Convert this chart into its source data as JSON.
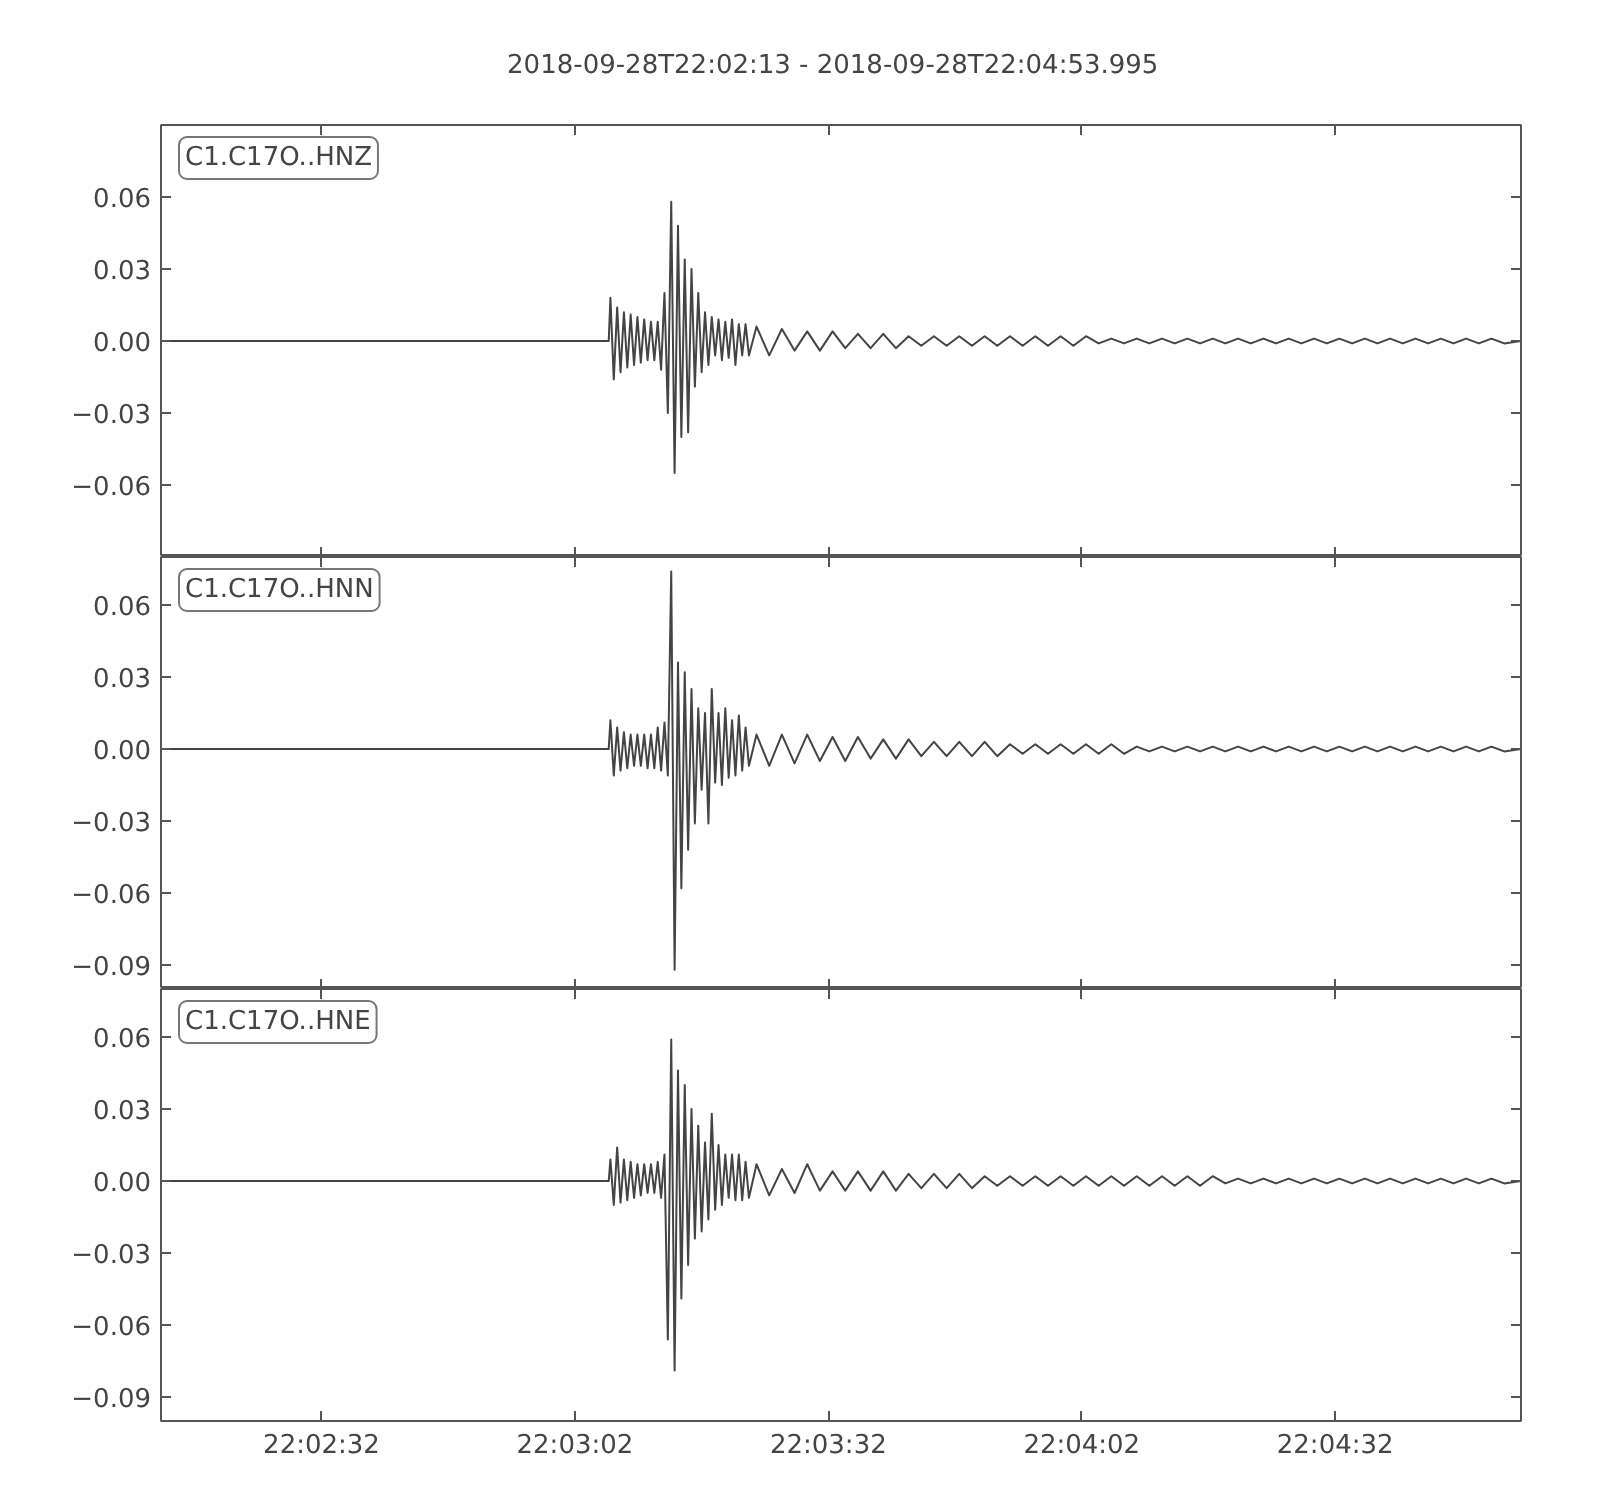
{
  "chart_data": [
    {
      "type": "line",
      "title": "2018-09-28T22:02:13  -  2018-09-28T22:04:53.995",
      "tick_labels": "y",
      "xlim": [
        "2018-09-28T22:02:13",
        "2018-09-28T22:04:53.995"
      ],
      "xticks": [
        {
          "value": "2018-09-28T22:02:32",
          "label": null
        },
        {
          "value": "2018-09-28T22:03:02",
          "label": null
        },
        {
          "value": "2018-09-28T22:03:32",
          "label": null
        },
        {
          "value": "2018-09-28T22:04:02",
          "label": null
        },
        {
          "value": "2018-09-28T22:04:32",
          "label": null
        }
      ],
      "ylim": [
        -0.09,
        0.09
      ],
      "yticks": [
        {
          "value": 0.06,
          "label": "0.06"
        },
        {
          "value": 0.03,
          "label": "0.03"
        },
        {
          "value": 0,
          "label": "0.00"
        },
        {
          "value": -0.03,
          "label": "−0.03"
        },
        {
          "value": -0.06,
          "label": "−0.06"
        }
      ],
      "x": [
        "2018-09-28T22:02:13",
        "2018-09-28T22:02:30",
        "2018-09-28T22:02:50",
        "2018-09-28T22:03:06",
        "2018-09-28T22:03:06.2",
        "2018-09-28T22:03:06.6",
        "2018-09-28T22:03:07.0",
        "2018-09-28T22:03:07.4",
        "2018-09-28T22:03:07.8",
        "2018-09-28T22:03:08.2",
        "2018-09-28T22:03:08.6",
        "2018-09-28T22:03:09.0",
        "2018-09-28T22:03:09.4",
        "2018-09-28T22:03:09.8",
        "2018-09-28T22:03:10.2",
        "2018-09-28T22:03:10.6",
        "2018-09-28T22:03:11.0",
        "2018-09-28T22:03:11.4",
        "2018-09-28T22:03:11.8",
        "2018-09-28T22:03:12.2",
        "2018-09-28T22:03:12.6",
        "2018-09-28T22:03:13.0",
        "2018-09-28T22:03:13.4",
        "2018-09-28T22:03:13.8",
        "2018-09-28T22:03:14.2",
        "2018-09-28T22:03:14.6",
        "2018-09-28T22:03:15.0",
        "2018-09-28T22:03:15.4",
        "2018-09-28T22:03:15.8",
        "2018-09-28T22:03:16.2",
        "2018-09-28T22:03:16.6",
        "2018-09-28T22:03:17.0",
        "2018-09-28T22:03:17.4",
        "2018-09-28T22:03:17.8",
        "2018-09-28T22:03:18.2",
        "2018-09-28T22:03:18.6",
        "2018-09-28T22:03:19.0",
        "2018-09-28T22:03:19.4",
        "2018-09-28T22:03:19.8",
        "2018-09-28T22:03:20.2",
        "2018-09-28T22:03:20.6",
        "2018-09-28T22:03:21.0",
        "2018-09-28T22:03:21.4",
        "2018-09-28T22:03:21.8",
        "2018-09-28T22:03:22.2",
        "2018-09-28T22:03:22.6",
        "2018-09-28T22:03:23.5",
        "2018-09-28T22:03:25.0",
        "2018-09-28T22:03:26.5",
        "2018-09-28T22:03:28.0",
        "2018-09-28T22:03:29.5",
        "2018-09-28T22:03:31.0",
        "2018-09-28T22:03:32.5",
        "2018-09-28T22:03:34.0",
        "2018-09-28T22:03:35.5",
        "2018-09-28T22:03:37.0",
        "2018-09-28T22:03:38.5",
        "2018-09-28T22:03:40.0",
        "2018-09-28T22:03:41.5",
        "2018-09-28T22:03:43.0",
        "2018-09-28T22:03:44.5",
        "2018-09-28T22:03:46.0",
        "2018-09-28T22:03:47.5",
        "2018-09-28T22:03:49.0",
        "2018-09-28T22:03:50.5",
        "2018-09-28T22:03:52.0",
        "2018-09-28T22:03:53.5",
        "2018-09-28T22:03:55.0",
        "2018-09-28T22:03:56.5",
        "2018-09-28T22:03:58.0",
        "2018-09-28T22:03:59.5",
        "2018-09-28T22:04:01.0",
        "2018-09-28T22:04:02.5",
        "2018-09-28T22:04:04.0",
        "2018-09-28T22:04:05.5",
        "2018-09-28T22:04:07.0",
        "2018-09-28T22:04:08.5",
        "2018-09-28T22:04:10.0",
        "2018-09-28T22:04:11.5",
        "2018-09-28T22:04:13.0",
        "2018-09-28T22:04:14.5",
        "2018-09-28T22:04:16.0",
        "2018-09-28T22:04:17.5",
        "2018-09-28T22:04:19.0",
        "2018-09-28T22:04:20.5",
        "2018-09-28T22:04:22.0",
        "2018-09-28T22:04:23.5",
        "2018-09-28T22:04:25.0",
        "2018-09-28T22:04:26.5",
        "2018-09-28T22:04:28.0",
        "2018-09-28T22:04:29.5",
        "2018-09-28T22:04:31.0",
        "2018-09-28T22:04:32.5",
        "2018-09-28T22:04:34.0",
        "2018-09-28T22:04:35.5",
        "2018-09-28T22:04:37.0",
        "2018-09-28T22:04:38.5",
        "2018-09-28T22:04:40.0",
        "2018-09-28T22:04:41.5",
        "2018-09-28T22:04:43.0",
        "2018-09-28T22:04:44.5",
        "2018-09-28T22:04:46.0",
        "2018-09-28T22:04:47.5",
        "2018-09-28T22:04:49.0",
        "2018-09-28T22:04:50.5",
        "2018-09-28T22:04:52.0",
        "2018-09-28T22:04:53.995"
      ],
      "series": [
        {
          "name": "C1.C17O..HNZ",
          "color": "#444444",
          "values": [
            0,
            0,
            0,
            0,
            0.018,
            -0.016,
            0.014,
            -0.013,
            0.012,
            -0.011,
            0.011,
            -0.01,
            0.01,
            -0.009,
            0.009,
            -0.008,
            0.008,
            -0.008,
            0.008,
            -0.012,
            0.02,
            -0.03,
            0.058,
            -0.055,
            0.048,
            -0.04,
            0.034,
            -0.038,
            0.03,
            -0.019,
            0.02,
            -0.013,
            0.012,
            -0.01,
            0.01,
            -0.006,
            0.009,
            -0.008,
            0.008,
            -0.007,
            0.009,
            -0.01,
            0.007,
            -0.006,
            0.007,
            -0.006,
            0.006,
            -0.006,
            0.005,
            -0.004,
            0.004,
            -0.004,
            0.004,
            -0.003,
            0.003,
            -0.003,
            0.003,
            -0.003,
            0.002,
            -0.002,
            0.002,
            -0.002,
            0.002,
            -0.002,
            0.002,
            -0.002,
            0.002,
            -0.002,
            0.002,
            -0.002,
            0.002,
            -0.002,
            0.002,
            -0.001,
            0.001,
            -0.001,
            0.001,
            -0.001,
            0.001,
            -0.001,
            0.001,
            -0.001,
            0.001,
            -0.001,
            0.001,
            -0.001,
            0.001,
            -0.001,
            0.001,
            -0.001,
            0.001,
            -0.001,
            0.001,
            -0.001,
            0.001,
            -0.001,
            0.001,
            -0.001,
            0.001,
            -0.001,
            0.001,
            -0.001,
            0.001,
            -0.001,
            0.001,
            -0.001,
            0
          ]
        }
      ]
    },
    {
      "type": "line",
      "tick_labels": "y",
      "xlim": [
        "2018-09-28T22:02:13",
        "2018-09-28T22:04:53.995"
      ],
      "xticks": [
        {
          "value": "2018-09-28T22:02:32",
          "label": null
        },
        {
          "value": "2018-09-28T22:03:02",
          "label": null
        },
        {
          "value": "2018-09-28T22:03:32",
          "label": null
        },
        {
          "value": "2018-09-28T22:04:02",
          "label": null
        },
        {
          "value": "2018-09-28T22:04:32",
          "label": null
        }
      ],
      "ylim": [
        -0.1,
        0.08
      ],
      "yticks": [
        {
          "value": 0.06,
          "label": "0.06"
        },
        {
          "value": 0.03,
          "label": "0.03"
        },
        {
          "value": 0,
          "label": "0.00"
        },
        {
          "value": -0.03,
          "label": "−0.03"
        },
        {
          "value": -0.06,
          "label": "−0.06"
        },
        {
          "value": -0.09,
          "label": "−0.09"
        }
      ],
      "x": [
        "2018-09-28T22:02:13",
        "2018-09-28T22:02:30",
        "2018-09-28T22:02:50",
        "2018-09-28T22:03:06",
        "2018-09-28T22:03:06.2",
        "2018-09-28T22:03:06.6",
        "2018-09-28T22:03:07.0",
        "2018-09-28T22:03:07.4",
        "2018-09-28T22:03:07.8",
        "2018-09-28T22:03:08.2",
        "2018-09-28T22:03:08.6",
        "2018-09-28T22:03:09.0",
        "2018-09-28T22:03:09.4",
        "2018-09-28T22:03:09.8",
        "2018-09-28T22:03:10.2",
        "2018-09-28T22:03:10.6",
        "2018-09-28T22:03:11.0",
        "2018-09-28T22:03:11.4",
        "2018-09-28T22:03:11.8",
        "2018-09-28T22:03:12.2",
        "2018-09-28T22:03:12.6",
        "2018-09-28T22:03:13.0",
        "2018-09-28T22:03:13.4",
        "2018-09-28T22:03:13.8",
        "2018-09-28T22:03:14.2",
        "2018-09-28T22:03:14.6",
        "2018-09-28T22:03:15.0",
        "2018-09-28T22:03:15.4",
        "2018-09-28T22:03:15.8",
        "2018-09-28T22:03:16.2",
        "2018-09-28T22:03:16.6",
        "2018-09-28T22:03:17.0",
        "2018-09-28T22:03:17.4",
        "2018-09-28T22:03:17.8",
        "2018-09-28T22:03:18.2",
        "2018-09-28T22:03:18.6",
        "2018-09-28T22:03:19.0",
        "2018-09-28T22:03:19.4",
        "2018-09-28T22:03:19.8",
        "2018-09-28T22:03:20.2",
        "2018-09-28T22:03:20.6",
        "2018-09-28T22:03:21.0",
        "2018-09-28T22:03:21.4",
        "2018-09-28T22:03:21.8",
        "2018-09-28T22:03:22.2",
        "2018-09-28T22:03:22.6",
        "2018-09-28T22:03:23.5",
        "2018-09-28T22:03:25.0",
        "2018-09-28T22:03:26.5",
        "2018-09-28T22:03:28.0",
        "2018-09-28T22:03:29.5",
        "2018-09-28T22:03:31.0",
        "2018-09-28T22:03:32.5",
        "2018-09-28T22:03:34.0",
        "2018-09-28T22:03:35.5",
        "2018-09-28T22:03:37.0",
        "2018-09-28T22:03:38.5",
        "2018-09-28T22:03:40.0",
        "2018-09-28T22:03:41.5",
        "2018-09-28T22:03:43.0",
        "2018-09-28T22:03:44.5",
        "2018-09-28T22:03:46.0",
        "2018-09-28T22:03:47.5",
        "2018-09-28T22:03:49.0",
        "2018-09-28T22:03:50.5",
        "2018-09-28T22:03:52.0",
        "2018-09-28T22:03:53.5",
        "2018-09-28T22:03:55.0",
        "2018-09-28T22:03:56.5",
        "2018-09-28T22:03:58.0",
        "2018-09-28T22:03:59.5",
        "2018-09-28T22:04:01.0",
        "2018-09-28T22:04:02.5",
        "2018-09-28T22:04:04.0",
        "2018-09-28T22:04:05.5",
        "2018-09-28T22:04:07.0",
        "2018-09-28T22:04:08.5",
        "2018-09-28T22:04:10.0",
        "2018-09-28T22:04:11.5",
        "2018-09-28T22:04:13.0",
        "2018-09-28T22:04:14.5",
        "2018-09-28T22:04:16.0",
        "2018-09-28T22:04:17.5",
        "2018-09-28T22:04:19.0",
        "2018-09-28T22:04:20.5",
        "2018-09-28T22:04:22.0",
        "2018-09-28T22:04:23.5",
        "2018-09-28T22:04:25.0",
        "2018-09-28T22:04:26.5",
        "2018-09-28T22:04:28.0",
        "2018-09-28T22:04:29.5",
        "2018-09-28T22:04:31.0",
        "2018-09-28T22:04:32.5",
        "2018-09-28T22:04:34.0",
        "2018-09-28T22:04:35.5",
        "2018-09-28T22:04:37.0",
        "2018-09-28T22:04:38.5",
        "2018-09-28T22:04:40.0",
        "2018-09-28T22:04:41.5",
        "2018-09-28T22:04:43.0",
        "2018-09-28T22:04:44.5",
        "2018-09-28T22:04:46.0",
        "2018-09-28T22:04:47.5",
        "2018-09-28T22:04:49.0",
        "2018-09-28T22:04:50.5",
        "2018-09-28T22:04:52.0",
        "2018-09-28T22:04:53.995"
      ],
      "series": [
        {
          "name": "C1.C17O..HNN",
          "color": "#444444",
          "values": [
            0,
            0,
            0,
            0,
            0.012,
            -0.011,
            0.009,
            -0.009,
            0.007,
            -0.008,
            0.006,
            -0.007,
            0.006,
            -0.007,
            0.006,
            -0.008,
            0.006,
            -0.008,
            0.009,
            -0.009,
            0.011,
            -0.011,
            0.074,
            -0.092,
            0.036,
            -0.058,
            0.032,
            -0.042,
            0.025,
            -0.031,
            0.017,
            -0.017,
            0.015,
            -0.031,
            0.025,
            -0.014,
            0.015,
            -0.015,
            0.017,
            -0.012,
            0.012,
            -0.011,
            0.014,
            -0.009,
            0.009,
            -0.007,
            0.006,
            -0.007,
            0.006,
            -0.006,
            0.006,
            -0.005,
            0.005,
            -0.005,
            0.005,
            -0.004,
            0.004,
            -0.004,
            0.004,
            -0.003,
            0.003,
            -0.003,
            0.003,
            -0.003,
            0.003,
            -0.003,
            0.002,
            -0.002,
            0.002,
            -0.002,
            0.002,
            -0.002,
            0.002,
            -0.002,
            0.002,
            -0.002,
            0.001,
            -0.001,
            0.001,
            -0.001,
            0.001,
            -0.001,
            0.001,
            -0.001,
            0.001,
            -0.001,
            0.001,
            -0.001,
            0.001,
            -0.001,
            0.001,
            -0.001,
            0.001,
            -0.001,
            0.001,
            -0.001,
            0.001,
            -0.001,
            0.001,
            -0.001,
            0.001,
            -0.001,
            0.001,
            -0.001,
            0.001,
            -0.001,
            0
          ]
        }
      ]
    },
    {
      "type": "line",
      "xlim": [
        "2018-09-28T22:02:13",
        "2018-09-28T22:04:53.995"
      ],
      "xticks": [
        {
          "value": "2018-09-28T22:02:32",
          "label": "22:02:32"
        },
        {
          "value": "2018-09-28T22:03:02",
          "label": "22:03:02"
        },
        {
          "value": "2018-09-28T22:03:32",
          "label": "22:03:32"
        },
        {
          "value": "2018-09-28T22:04:02",
          "label": "22:04:02"
        },
        {
          "value": "2018-09-28T22:04:32",
          "label": "22:04:32"
        }
      ],
      "ylim": [
        -0.1,
        0.08
      ],
      "yticks": [
        {
          "value": 0.06,
          "label": "0.06"
        },
        {
          "value": 0.03,
          "label": "0.03"
        },
        {
          "value": 0,
          "label": "0.00"
        },
        {
          "value": -0.03,
          "label": "−0.03"
        },
        {
          "value": -0.06,
          "label": "−0.06"
        },
        {
          "value": -0.09,
          "label": "−0.09"
        }
      ],
      "x": [
        "2018-09-28T22:02:13",
        "2018-09-28T22:02:30",
        "2018-09-28T22:02:50",
        "2018-09-28T22:03:06",
        "2018-09-28T22:03:06.2",
        "2018-09-28T22:03:06.6",
        "2018-09-28T22:03:07.0",
        "2018-09-28T22:03:07.4",
        "2018-09-28T22:03:07.8",
        "2018-09-28T22:03:08.2",
        "2018-09-28T22:03:08.6",
        "2018-09-28T22:03:09.0",
        "2018-09-28T22:03:09.4",
        "2018-09-28T22:03:09.8",
        "2018-09-28T22:03:10.2",
        "2018-09-28T22:03:10.6",
        "2018-09-28T22:03:11.0",
        "2018-09-28T22:03:11.4",
        "2018-09-28T22:03:11.8",
        "2018-09-28T22:03:12.2",
        "2018-09-28T22:03:12.6",
        "2018-09-28T22:03:13.0",
        "2018-09-28T22:03:13.4",
        "2018-09-28T22:03:13.8",
        "2018-09-28T22:03:14.2",
        "2018-09-28T22:03:14.6",
        "2018-09-28T22:03:15.0",
        "2018-09-28T22:03:15.4",
        "2018-09-28T22:03:15.8",
        "2018-09-28T22:03:16.2",
        "2018-09-28T22:03:16.6",
        "2018-09-28T22:03:17.0",
        "2018-09-28T22:03:17.4",
        "2018-09-28T22:03:17.8",
        "2018-09-28T22:03:18.2",
        "2018-09-28T22:03:18.6",
        "2018-09-28T22:03:19.0",
        "2018-09-28T22:03:19.4",
        "2018-09-28T22:03:19.8",
        "2018-09-28T22:03:20.2",
        "2018-09-28T22:03:20.6",
        "2018-09-28T22:03:21.0",
        "2018-09-28T22:03:21.4",
        "2018-09-28T22:03:21.8",
        "2018-09-28T22:03:22.2",
        "2018-09-28T22:03:22.6",
        "2018-09-28T22:03:23.5",
        "2018-09-28T22:03:25.0",
        "2018-09-28T22:03:26.5",
        "2018-09-28T22:03:28.0",
        "2018-09-28T22:03:29.5",
        "2018-09-28T22:03:31.0",
        "2018-09-28T22:03:32.5",
        "2018-09-28T22:03:34.0",
        "2018-09-28T22:03:35.5",
        "2018-09-28T22:03:37.0",
        "2018-09-28T22:03:38.5",
        "2018-09-28T22:03:40.0",
        "2018-09-28T22:03:41.5",
        "2018-09-28T22:03:43.0",
        "2018-09-28T22:03:44.5",
        "2018-09-28T22:03:46.0",
        "2018-09-28T22:03:47.5",
        "2018-09-28T22:03:49.0",
        "2018-09-28T22:03:50.5",
        "2018-09-28T22:03:52.0",
        "2018-09-28T22:03:53.5",
        "2018-09-28T22:03:55.0",
        "2018-09-28T22:03:56.5",
        "2018-09-28T22:03:58.0",
        "2018-09-28T22:03:59.5",
        "2018-09-28T22:04:01.0",
        "2018-09-28T22:04:02.5",
        "2018-09-28T22:04:04.0",
        "2018-09-28T22:04:05.5",
        "2018-09-28T22:04:07.0",
        "2018-09-28T22:04:08.5",
        "2018-09-28T22:04:10.0",
        "2018-09-28T22:04:11.5",
        "2018-09-28T22:04:13.0",
        "2018-09-28T22:04:14.5",
        "2018-09-28T22:04:16.0",
        "2018-09-28T22:04:17.5",
        "2018-09-28T22:04:19.0",
        "2018-09-28T22:04:20.5",
        "2018-09-28T22:04:22.0",
        "2018-09-28T22:04:23.5",
        "2018-09-28T22:04:25.0",
        "2018-09-28T22:04:26.5",
        "2018-09-28T22:04:28.0",
        "2018-09-28T22:04:29.5",
        "2018-09-28T22:04:31.0",
        "2018-09-28T22:04:32.5",
        "2018-09-28T22:04:34.0",
        "2018-09-28T22:04:35.5",
        "2018-09-28T22:04:37.0",
        "2018-09-28T22:04:38.5",
        "2018-09-28T22:04:40.0",
        "2018-09-28T22:04:41.5",
        "2018-09-28T22:04:43.0",
        "2018-09-28T22:04:44.5",
        "2018-09-28T22:04:46.0",
        "2018-09-28T22:04:47.5",
        "2018-09-28T22:04:49.0",
        "2018-09-28T22:04:50.5",
        "2018-09-28T22:04:52.0",
        "2018-09-28T22:04:53.995"
      ],
      "series": [
        {
          "name": "C1.C17O..HNE",
          "color": "#444444",
          "values": [
            0,
            0,
            0,
            0,
            0.009,
            -0.01,
            0.014,
            -0.009,
            0.009,
            -0.008,
            0.008,
            -0.007,
            0.007,
            -0.006,
            0.007,
            -0.005,
            0.007,
            -0.005,
            0.008,
            -0.007,
            0.011,
            -0.066,
            0.059,
            -0.079,
            0.046,
            -0.049,
            0.04,
            -0.035,
            0.03,
            -0.024,
            0.023,
            -0.021,
            0.016,
            -0.016,
            0.028,
            -0.012,
            0.015,
            -0.01,
            0.011,
            -0.007,
            0.011,
            -0.008,
            0.011,
            -0.008,
            0.008,
            -0.007,
            0.007,
            -0.006,
            0.005,
            -0.005,
            0.007,
            -0.004,
            0.004,
            -0.004,
            0.004,
            -0.004,
            0.004,
            -0.004,
            0.003,
            -0.003,
            0.003,
            -0.003,
            0.003,
            -0.003,
            0.002,
            -0.002,
            0.002,
            -0.002,
            0.002,
            -0.002,
            0.002,
            -0.002,
            0.002,
            -0.002,
            0.002,
            -0.002,
            0.002,
            -0.002,
            0.002,
            -0.002,
            0.002,
            -0.002,
            0.002,
            -0.001,
            0.001,
            -0.001,
            0.001,
            -0.001,
            0.001,
            -0.001,
            0.001,
            -0.001,
            0.001,
            -0.001,
            0.001,
            -0.001,
            0.001,
            -0.001,
            0.001,
            -0.001,
            0.001,
            -0.001,
            0.001,
            -0.001,
            0.001,
            -0.001,
            0
          ]
        }
      ]
    }
  ]
}
